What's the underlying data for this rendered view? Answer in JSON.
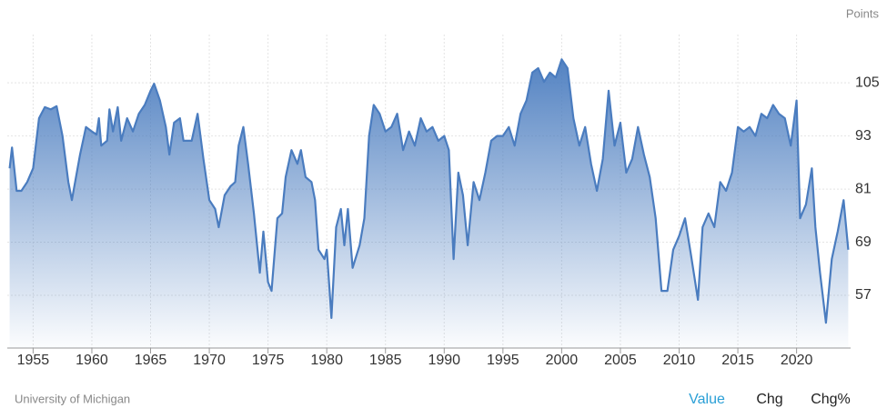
{
  "chart_data": {
    "type": "area",
    "y_label": "Points",
    "source": "University of Michigan",
    "tabs": [
      "Value",
      "Chg",
      "Chg%"
    ],
    "active_tab": 0,
    "color": "#4a7cbf",
    "grid": true,
    "xlim": [
      1952.8,
      2024.6
    ],
    "xticks": [
      1955,
      1960,
      1965,
      1970,
      1975,
      1980,
      1985,
      1990,
      1995,
      2000,
      2005,
      2010,
      2015,
      2020
    ],
    "ylim": [
      45.1,
      115.9
    ],
    "yticks": [
      57,
      69,
      81,
      93,
      105
    ],
    "x": [
      1953.0,
      1953.2,
      1953.6,
      1954.0,
      1954.5,
      1955.0,
      1955.5,
      1956.0,
      1956.5,
      1957.0,
      1957.5,
      1958.0,
      1958.3,
      1959.0,
      1959.5,
      1960.0,
      1960.4,
      1960.6,
      1960.8,
      1961.3,
      1961.5,
      1961.8,
      1962.2,
      1962.5,
      1963.0,
      1963.5,
      1964.0,
      1964.5,
      1965.0,
      1965.3,
      1965.8,
      1966.3,
      1966.6,
      1967.0,
      1967.5,
      1967.8,
      1968.5,
      1969.0,
      1969.5,
      1970.0,
      1970.5,
      1970.8,
      1971.3,
      1971.8,
      1972.2,
      1972.5,
      1972.9,
      1973.3,
      1973.8,
      1974.3,
      1974.6,
      1975.0,
      1975.3,
      1975.8,
      1976.2,
      1976.5,
      1977.0,
      1977.5,
      1977.8,
      1978.2,
      1978.7,
      1979.0,
      1979.3,
      1979.8,
      1980.0,
      1980.3,
      1980.4,
      1980.8,
      1981.2,
      1981.5,
      1981.8,
      1982.2,
      1982.8,
      1983.2,
      1983.6,
      1984.0,
      1984.5,
      1985.0,
      1985.5,
      1986.0,
      1986.5,
      1987.0,
      1987.5,
      1988.0,
      1988.5,
      1989.0,
      1989.5,
      1990.0,
      1990.4,
      1990.8,
      1991.2,
      1991.6,
      1992.0,
      1992.5,
      1993.0,
      1993.5,
      1994.0,
      1994.5,
      1995.0,
      1995.5,
      1996.0,
      1996.5,
      1997.0,
      1997.5,
      1998.0,
      1998.5,
      1999.0,
      1999.5,
      2000.0,
      2000.5,
      2001.0,
      2001.5,
      2002.0,
      2002.5,
      2003.0,
      2003.5,
      2004.0,
      2004.5,
      2005.0,
      2005.5,
      2006.0,
      2006.5,
      2007.0,
      2007.5,
      2008.0,
      2008.5,
      2009.0,
      2009.5,
      2010.0,
      2010.5,
      2011.0,
      2011.6,
      2012.0,
      2012.5,
      2013.0,
      2013.5,
      2014.0,
      2014.5,
      2015.0,
      2015.5,
      2016.0,
      2016.5,
      2017.0,
      2017.5,
      2018.0,
      2018.5,
      2019.0,
      2019.5,
      2020.0,
      2020.3,
      2020.8,
      2021.3,
      2021.6,
      2022.0,
      2022.5,
      2023.0,
      2023.5,
      2024.0,
      2024.4
    ],
    "values": [
      85.7,
      90.4,
      80.6,
      80.6,
      82.6,
      85.7,
      97,
      99.5,
      99,
      99.7,
      93,
      82.6,
      78.5,
      88.8,
      95,
      94,
      93.3,
      97,
      90.8,
      91.9,
      99,
      94,
      99.5,
      91.9,
      97,
      94,
      98,
      100,
      103.2,
      104.8,
      101,
      95,
      88.8,
      96,
      97,
      91.9,
      91.9,
      98,
      87.8,
      78.5,
      76.5,
      72.4,
      79.6,
      81.6,
      82.6,
      90.8,
      95,
      86.7,
      75.5,
      62.1,
      71.4,
      60,
      58,
      74.4,
      75.5,
      83.7,
      89.8,
      86.7,
      89.8,
      83.7,
      82.6,
      78.5,
      67.3,
      65.2,
      67.3,
      56,
      51.9,
      72.4,
      76.5,
      68.3,
      76.5,
      63.2,
      68.3,
      74.4,
      93,
      100,
      98,
      94,
      95,
      98,
      89.8,
      94,
      90.8,
      97,
      94,
      95,
      91.9,
      93,
      89.8,
      65.2,
      84.7,
      79.6,
      68.3,
      82.6,
      78.5,
      84.7,
      91.9,
      93,
      93,
      95,
      90.8,
      98,
      101,
      107.3,
      108.3,
      105.2,
      107.3,
      106.2,
      110.3,
      108.3,
      97,
      90.8,
      95,
      86.7,
      80.6,
      87.8,
      103.2,
      90.8,
      96,
      84.7,
      87.8,
      95,
      88.8,
      83.7,
      74.4,
      58,
      58,
      67.3,
      70.4,
      74.4,
      66.3,
      56,
      72.4,
      75.5,
      72.4,
      82.6,
      80.6,
      84.7,
      95,
      94,
      95,
      93,
      98,
      97,
      100,
      98,
      97,
      90.8,
      101,
      74.4,
      77.5,
      85.7,
      72.4,
      62.1,
      50.8,
      65.2,
      71.4,
      78.5,
      67.3
    ]
  }
}
